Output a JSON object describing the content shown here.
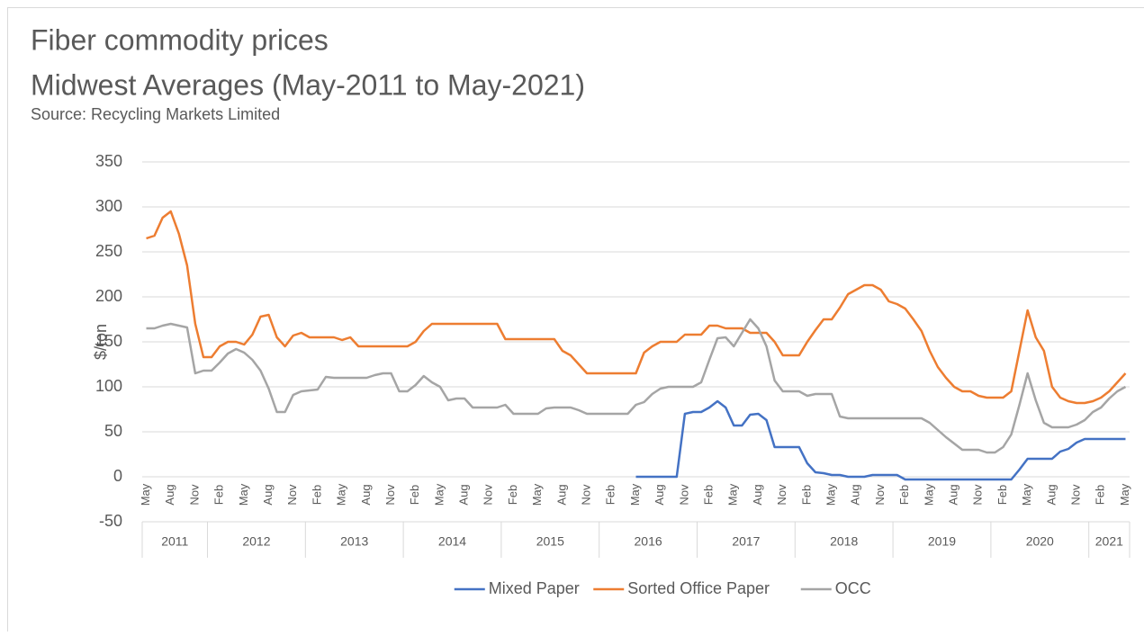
{
  "chart_data": {
    "type": "line",
    "title": "Fiber commodity prices",
    "subtitle": "Midwest Averages (May-2011 to May-2021)",
    "source": "Source: Recycling Markets Limited",
    "y_label": "$/ton",
    "ylim": [
      -50,
      350
    ],
    "yticks": [
      -50,
      0,
      50,
      100,
      150,
      200,
      250,
      300,
      350
    ],
    "grid": true,
    "legend": "bottom",
    "categories": [
      "May",
      null,
      null,
      "Aug",
      null,
      null,
      "Nov",
      null,
      null,
      "Feb",
      null,
      null,
      "May",
      null,
      null,
      "Aug",
      null,
      null,
      "Nov",
      null,
      null,
      "Feb",
      null,
      null,
      "May",
      null,
      null,
      "Aug",
      null,
      null,
      "Nov",
      null,
      null,
      "Feb",
      null,
      null,
      "May",
      null,
      null,
      "Aug",
      null,
      null,
      "Nov",
      null,
      null,
      "Feb",
      null,
      null,
      "May",
      null,
      null,
      "Aug",
      null,
      null,
      "Nov",
      null,
      null,
      "Feb",
      null,
      null,
      "May",
      null,
      null,
      "Aug",
      null,
      null,
      "Nov",
      null,
      null,
      "Feb",
      null,
      null,
      "May",
      null,
      null,
      "Aug",
      null,
      null,
      "Nov",
      null,
      null,
      "Feb",
      null,
      null,
      "May",
      null,
      null,
      "Aug",
      null,
      null,
      "Nov",
      null,
      null,
      "Feb",
      null,
      null,
      "May",
      null,
      null,
      "Aug",
      null,
      null,
      "Nov",
      null,
      null,
      "Feb",
      null,
      null,
      "May",
      null,
      null,
      "Aug",
      null,
      null,
      "Nov",
      null,
      null,
      "Feb",
      null,
      null,
      "May"
    ],
    "year_groups": [
      {
        "label": "2011",
        "span": 8
      },
      {
        "label": "2012",
        "span": 12
      },
      {
        "label": "2013",
        "span": 12
      },
      {
        "label": "2014",
        "span": 12
      },
      {
        "label": "2015",
        "span": 12
      },
      {
        "label": "2016",
        "span": 12
      },
      {
        "label": "2017",
        "span": 12
      },
      {
        "label": "2018",
        "span": 12
      },
      {
        "label": "2019",
        "span": 12
      },
      {
        "label": "2020",
        "span": 12
      },
      {
        "label": "2021",
        "span": 5
      }
    ],
    "series": [
      {
        "name": "Mixed Paper",
        "color": "#4472c4",
        "values": [
          null,
          null,
          null,
          null,
          null,
          null,
          null,
          null,
          null,
          null,
          null,
          null,
          null,
          null,
          null,
          null,
          null,
          null,
          null,
          null,
          null,
          null,
          null,
          null,
          null,
          null,
          null,
          null,
          null,
          null,
          null,
          null,
          null,
          null,
          null,
          null,
          null,
          null,
          null,
          null,
          null,
          null,
          null,
          null,
          null,
          null,
          null,
          null,
          null,
          null,
          null,
          null,
          null,
          null,
          null,
          null,
          null,
          null,
          null,
          null,
          0,
          0,
          0,
          0,
          0,
          0,
          70,
          72,
          72,
          77,
          84,
          77,
          57,
          57,
          69,
          70,
          63,
          33,
          33,
          33,
          33,
          15,
          5,
          4,
          2,
          2,
          0,
          0,
          0,
          2,
          2,
          2,
          2,
          -3,
          -3,
          -3,
          -3,
          -3,
          -3,
          -3,
          -3,
          -3,
          -3,
          -3,
          -3,
          -3,
          -3,
          8,
          20,
          20,
          20,
          20,
          28,
          31,
          38,
          42,
          42,
          42,
          42,
          42,
          42
        ]
      },
      {
        "name": "Sorted Office Paper",
        "color": "#ed7d31",
        "values": [
          265,
          268,
          288,
          295,
          270,
          235,
          170,
          133,
          133,
          145,
          150,
          150,
          147,
          158,
          178,
          180,
          155,
          145,
          157,
          160,
          155,
          155,
          155,
          155,
          152,
          155,
          145,
          145,
          145,
          145,
          145,
          145,
          145,
          150,
          162,
          170,
          170,
          170,
          170,
          170,
          170,
          170,
          170,
          170,
          153,
          153,
          153,
          153,
          153,
          153,
          153,
          140,
          135,
          125,
          115,
          115,
          115,
          115,
          115,
          115,
          115,
          138,
          145,
          150,
          150,
          150,
          158,
          158,
          158,
          168,
          168,
          165,
          165,
          165,
          160,
          160,
          160,
          150,
          135,
          135,
          135,
          150,
          163,
          175,
          175,
          188,
          203,
          208,
          213,
          213,
          208,
          195,
          192,
          187,
          175,
          162,
          140,
          122,
          110,
          100,
          95,
          95,
          90,
          88,
          88,
          88,
          95,
          140,
          185,
          155,
          140,
          100,
          88,
          84,
          82,
          82,
          84,
          88,
          95,
          105,
          115
        ]
      },
      {
        "name": "OCC",
        "color": "#a5a5a5",
        "values": [
          165,
          165,
          168,
          170,
          168,
          166,
          115,
          118,
          118,
          127,
          137,
          142,
          138,
          130,
          118,
          98,
          72,
          72,
          91,
          95,
          96,
          97,
          111,
          110,
          110,
          110,
          110,
          110,
          113,
          115,
          115,
          95,
          95,
          102,
          112,
          105,
          100,
          85,
          87,
          87,
          77,
          77,
          77,
          77,
          80,
          70,
          70,
          70,
          70,
          76,
          77,
          77,
          77,
          74,
          70,
          70,
          70,
          70,
          70,
          70,
          80,
          83,
          92,
          98,
          100,
          100,
          100,
          100,
          105,
          130,
          154,
          155,
          145,
          160,
          175,
          165,
          145,
          107,
          95,
          95,
          95,
          90,
          92,
          92,
          92,
          67,
          65,
          65,
          65,
          65,
          65,
          65,
          65,
          65,
          65,
          65,
          60,
          52,
          44,
          37,
          30,
          30,
          30,
          27,
          27,
          33,
          47,
          80,
          115,
          85,
          60,
          55,
          55,
          55,
          58,
          63,
          72,
          77,
          87,
          95,
          100
        ]
      }
    ]
  }
}
